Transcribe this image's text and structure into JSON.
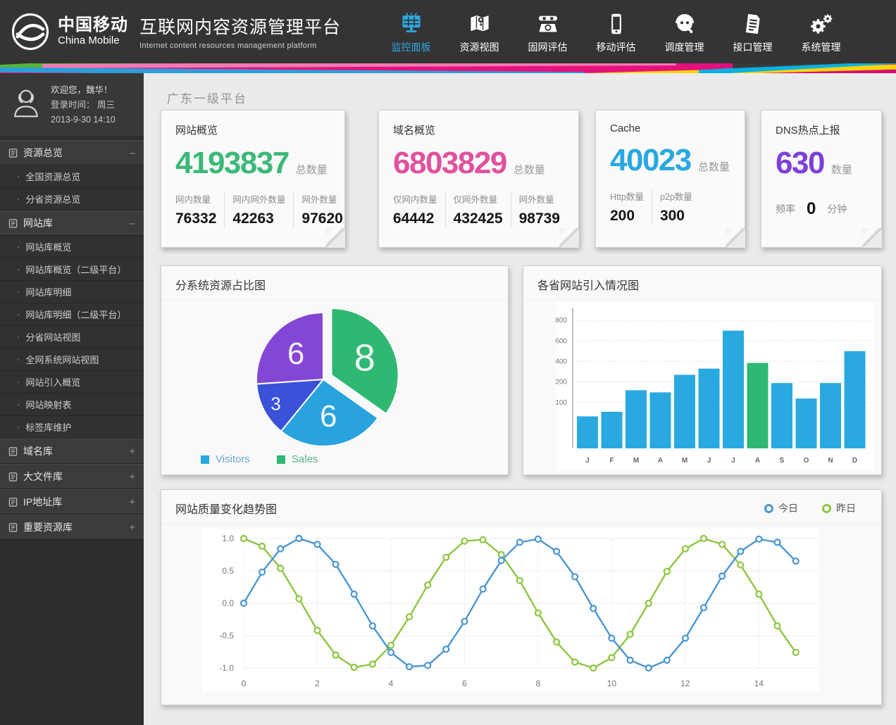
{
  "colors": {
    "accent_blue": "#29a8e0",
    "accent_green": "#3cb878",
    "accent_pink": "#e0519e",
    "accent_purple": "#7d3fd8",
    "nav_active": "#2ea7e0"
  },
  "header": {
    "brand": {
      "name_cn": "中国移动",
      "name_en": "China Mobile"
    },
    "title": "互联网内容资源管理平台",
    "subtitle": "Internet content resources management platform",
    "nav": [
      {
        "label": "监控面板",
        "icon": "dashboard-icon",
        "active": true
      },
      {
        "label": "资源视图",
        "icon": "map-icon",
        "active": false
      },
      {
        "label": "固网评估",
        "icon": "phone-icon",
        "active": false
      },
      {
        "label": "移动评估",
        "icon": "mobile-icon",
        "active": false
      },
      {
        "label": "调度管理",
        "icon": "operator-icon",
        "active": false
      },
      {
        "label": "接口管理",
        "icon": "interface-icon",
        "active": false
      },
      {
        "label": "系统管理",
        "icon": "gears-icon",
        "active": false
      }
    ]
  },
  "sidebar": {
    "user": {
      "welcome": "欢迎您，魏华！",
      "login_label": "登录时间：  周三",
      "login_datetime": "2013-9-30   14:10"
    },
    "menu": [
      {
        "label": "资源总览",
        "state": "expanded",
        "toggle": "–",
        "children": [
          "全国资源总览",
          "分省资源总览"
        ]
      },
      {
        "label": "网站库",
        "state": "expanded",
        "toggle": "–",
        "children": [
          "网站库概览",
          "网站库概览（二级平台）",
          "网站库明细",
          "网站库明细（二级平台）",
          "分省网站视图",
          "全网系统网站视图",
          "网站引入概览",
          "网站映射表",
          "标签库维护"
        ]
      },
      {
        "label": "域名库",
        "state": "collapsed",
        "toggle": "+",
        "children": []
      },
      {
        "label": "大文件库",
        "state": "collapsed",
        "toggle": "+",
        "children": []
      },
      {
        "label": "IP地址库",
        "state": "collapsed",
        "toggle": "+",
        "children": []
      },
      {
        "label": "重要资源库",
        "state": "collapsed",
        "toggle": "+",
        "children": []
      }
    ]
  },
  "main": {
    "page_title": "广东一级平台",
    "cards": [
      {
        "title": "网站概览",
        "value": "4193837",
        "value_color": "#3cb878",
        "unit": "总数量",
        "stats": [
          {
            "label": "网内数量",
            "value": "76332"
          },
          {
            "label": "网内网外数量",
            "value": "42263"
          },
          {
            "label": "网外数量",
            "value": "97620"
          }
        ]
      },
      {
        "title": "域名概览",
        "value": "6803829",
        "value_color": "#e0519e",
        "unit": "总数量",
        "stats": [
          {
            "label": "仅网内数量",
            "value": "64442"
          },
          {
            "label": "仅网外数量",
            "value": "432425"
          },
          {
            "label": "网外数量",
            "value": "98739"
          }
        ]
      },
      {
        "title": "Cache",
        "value": "40023",
        "value_color": "#29a8e0",
        "unit": "总数量",
        "stats": [
          {
            "label": "Http数量",
            "value": "200"
          },
          {
            "label": "p2p数量",
            "value": "300"
          }
        ]
      },
      {
        "title": "DNS热点上报",
        "value": "630",
        "value_color": "#7d3fd8",
        "unit": "数量",
        "freq": {
          "prefix": "频率",
          "value": "0",
          "suffix": "分钟"
        }
      }
    ]
  },
  "chart_data": [
    {
      "type": "pie",
      "title": "分系统资源占比图",
      "slices": [
        {
          "label": "8",
          "value": 8,
          "color": "#2eb872",
          "exploded": true
        },
        {
          "label": "6",
          "value": 6,
          "color": "#29a3dd",
          "exploded": false
        },
        {
          "label": "3",
          "value": 3,
          "color": "#3a52d8",
          "exploded": false
        },
        {
          "label": "6",
          "value": 6,
          "color": "#8446d4",
          "exploded": false
        }
      ],
      "start_angle_deg_from_top": 0,
      "direction": "clockwise",
      "legend": [
        {
          "label": "Visitors",
          "color": "#29a8e0",
          "text_color": "#6ea9d6"
        },
        {
          "label": "Sales",
          "color": "#2eb872",
          "text_color": "#5bb585"
        }
      ]
    },
    {
      "type": "bar",
      "title": "各省网站引入情况图",
      "categories": [
        "J",
        "F",
        "M",
        "A",
        "M",
        "J",
        "J",
        "A",
        "S",
        "O",
        "N",
        "D"
      ],
      "values": [
        70,
        80,
        160,
        150,
        270,
        330,
        700,
        385,
        195,
        120,
        195,
        500
      ],
      "bar_color": "#29a9e0",
      "highlight_index": 7,
      "highlight_color": "#2eb872",
      "y_tick_labels": [
        "800",
        "600",
        "400",
        "200",
        "100"
      ],
      "y_ticks": [
        800,
        600,
        400,
        200,
        100
      ],
      "axis_note": "non-linear tick spacing as displayed, grid dashed"
    },
    {
      "type": "line",
      "title": "网站质量变化趋势图",
      "x_start": 0,
      "x_step": 0.5,
      "x_tick_labels": [
        "0",
        "2",
        "4",
        "6",
        "8",
        "10",
        "12",
        "14"
      ],
      "x_ticks": [
        0,
        2,
        4,
        6,
        8,
        10,
        12,
        14
      ],
      "y_tick_labels": [
        "1.0",
        "0.5",
        "0.0",
        "-0.5",
        "-1.0"
      ],
      "y_ticks": [
        1.0,
        0.5,
        0.0,
        -0.5,
        -1.0
      ],
      "ylim": [
        -1.0,
        1.0
      ],
      "series": [
        {
          "name": "今日",
          "color": "#4a96d2",
          "values": [
            0.0,
            0.48,
            0.84,
            1.0,
            0.91,
            0.6,
            0.14,
            -0.35,
            -0.76,
            -0.98,
            -0.96,
            -0.71,
            -0.28,
            0.22,
            0.66,
            0.94,
            0.99,
            0.8,
            0.41,
            -0.08,
            -0.54,
            -0.88,
            -1.0,
            -0.88,
            -0.54,
            -0.07,
            0.42,
            0.8,
            0.99,
            0.94,
            0.65
          ]
        },
        {
          "name": "昨日",
          "color": "#8dc63f",
          "values": [
            1.0,
            0.88,
            0.54,
            0.07,
            -0.42,
            -0.8,
            -0.99,
            -0.94,
            -0.65,
            -0.21,
            0.28,
            0.71,
            0.96,
            0.98,
            0.75,
            0.35,
            -0.15,
            -0.6,
            -0.91,
            -1.0,
            -0.84,
            -0.48,
            0.0,
            0.49,
            0.84,
            1.0,
            0.91,
            0.59,
            0.14,
            -0.35,
            -0.76
          ]
        }
      ],
      "legend_position": "top-right"
    }
  ]
}
